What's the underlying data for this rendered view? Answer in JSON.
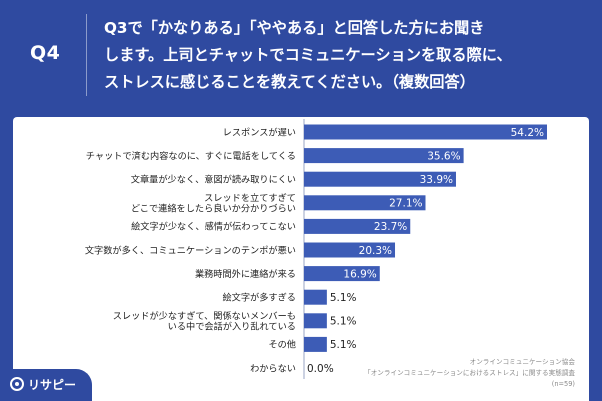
{
  "header": {
    "question_number": "Q4",
    "question_text": "Q3で「かなりある」「ややある」と回答した方にお聞き\nします。上司とチャットでコミュニケーションを取る際に、\nストレスに感じることを教えてください。（複数回答）"
  },
  "chart_data": {
    "type": "bar",
    "orientation": "horizontal",
    "categories": [
      [
        "レスポンスが遅い"
      ],
      [
        "チャットで済む内容なのに、すぐに電話をしてくる"
      ],
      [
        "文章量が少なく、意図が読み取りにくい"
      ],
      [
        "スレッドを立てすぎて",
        "どこで連絡をしたら良いか分かりづらい"
      ],
      [
        "絵文字が少なく、感情が伝わってこない"
      ],
      [
        "文字数が多く、コミュニケーションのテンポが悪い"
      ],
      [
        "業務時間外に連絡が来る"
      ],
      [
        "絵文字が多すぎる"
      ],
      [
        "スレッドが少なすぎて、関係ないメンバーも",
        "いる中で会話が入り乱れている"
      ],
      [
        "その他"
      ],
      [
        "わからない"
      ]
    ],
    "values": [
      54.2,
      35.6,
      33.9,
      27.1,
      23.7,
      20.3,
      16.9,
      5.1,
      5.1,
      5.1,
      0.0
    ],
    "value_labels": [
      "54.2%",
      "35.6%",
      "33.9%",
      "27.1%",
      "23.7%",
      "20.3%",
      "16.9%",
      "5.1%",
      "5.1%",
      "5.1%",
      "0.0%"
    ],
    "xlim": [
      0,
      60
    ],
    "bar_color": "#3d5cb6",
    "title": "",
    "xlabel": "",
    "ylabel": ""
  },
  "source": {
    "org": "オンラインコミュニケーション協会",
    "survey": "「オンラインコミュニケーションにおけるストレス」に関する実態調査",
    "n": "(n=59)"
  },
  "brand": {
    "name": "リサピー",
    "icon": "risapy-logo-icon"
  },
  "colors": {
    "background": "#2f4aa0",
    "bar": "#3d5cb6",
    "panel": "#ffffff"
  }
}
